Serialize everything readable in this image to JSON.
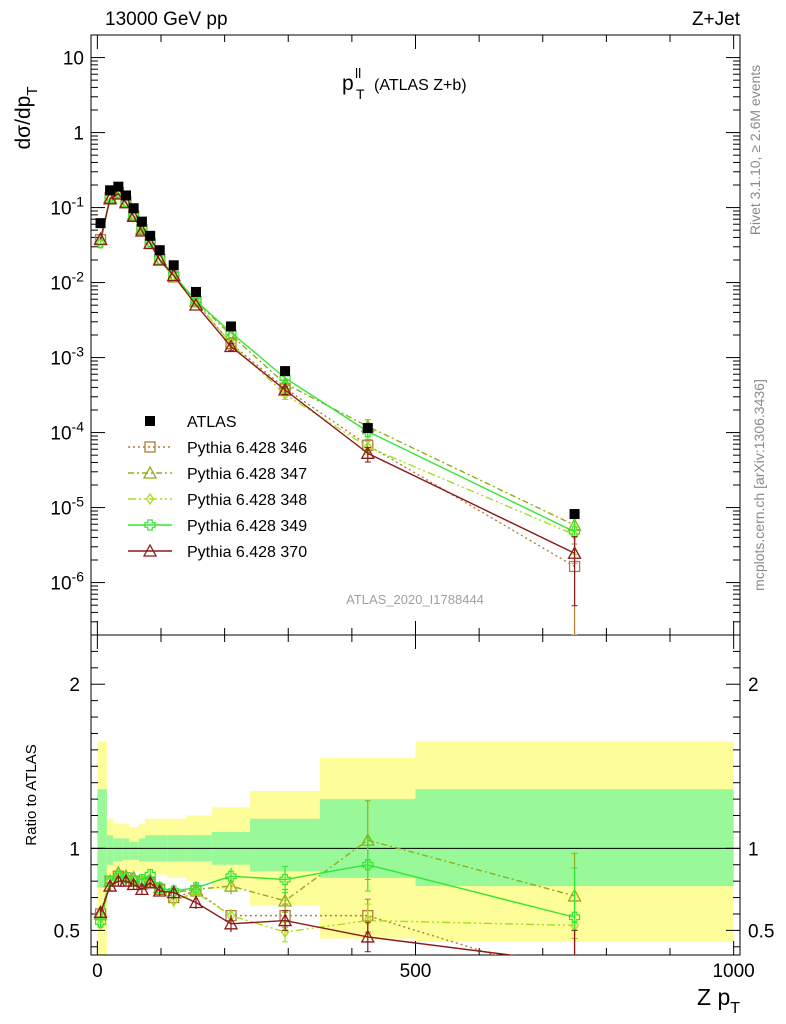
{
  "header": {
    "left": "13000 GeV pp",
    "right": "Z+Jet"
  },
  "side_labels": {
    "rivet": "Rivet 3.1.10, ≥ 2.6M events",
    "mcplots": "mcplots.cern.ch [arXiv:1306.3436]"
  },
  "analysis_id": "ATLAS_2020_I1788444",
  "plot_title": {
    "main": "p",
    "sup": "ll",
    "sub": "T",
    "suffix": "(ATLAS Z+b)"
  },
  "top_ylabel": {
    "main": "dσ/dp",
    "sub": "T"
  },
  "ratio_ylabel": "Ratio to ATLAS",
  "xlabel": {
    "main": "Z p",
    "sub": "T"
  },
  "colors": {
    "atlas": "#000000",
    "p346": "#b07d3a",
    "p347": "#8fae1b",
    "p348": "#a5e01a",
    "p349": "#33e633",
    "p370": "#8c1a1a",
    "band_inner": "#99f999",
    "band_outer": "#fdfd99"
  },
  "chart_data": {
    "type": "scatter",
    "x_range": [
      -10,
      1010
    ],
    "top_ylim": [
      2e-07,
      20
    ],
    "top_yscale": "log",
    "ratio_ylim": [
      0.35,
      2.3
    ],
    "top_yticks": [
      {
        "v": 10,
        "label": "10"
      },
      {
        "v": 1,
        "label": "1"
      },
      {
        "v": 0.1,
        "label": "10^-1"
      },
      {
        "v": 0.01,
        "label": "10^-2"
      },
      {
        "v": 0.001,
        "label": "10^-3"
      },
      {
        "v": 0.0001,
        "label": "10^-4"
      },
      {
        "v": 1e-05,
        "label": "10^-5"
      },
      {
        "v": 1e-06,
        "label": "10^-6"
      }
    ],
    "ratio_yticks": [
      {
        "v": 0.5,
        "label": "0.5"
      },
      {
        "v": 1,
        "label": "1"
      },
      {
        "v": 2,
        "label": "2"
      }
    ],
    "xticks": [
      {
        "v": 0,
        "label": "0"
      },
      {
        "v": 500,
        "label": "500"
      },
      {
        "v": 1000,
        "label": "1000"
      }
    ],
    "x": [
      5,
      20,
      33,
      45,
      57,
      70,
      83,
      98,
      120,
      155,
      210,
      295,
      425,
      750
    ],
    "atlas": [
      0.062,
      0.17,
      0.19,
      0.145,
      0.098,
      0.065,
      0.042,
      0.027,
      0.017,
      0.0075,
      0.0026,
      0.00066,
      0.000115,
      8.2e-06
    ],
    "bands": {
      "edges": [
        0,
        15,
        25,
        40,
        50,
        65,
        75,
        90,
        110,
        140,
        180,
        240,
        350,
        500,
        1000
      ],
      "inner_hi": [
        1.36,
        1.08,
        1.06,
        1.06,
        1.04,
        1.06,
        1.08,
        1.08,
        1.08,
        1.08,
        1.1,
        1.18,
        1.3,
        1.36
      ],
      "inner_lo": [
        0.76,
        0.9,
        0.92,
        0.93,
        0.93,
        0.92,
        0.92,
        0.92,
        0.92,
        0.92,
        0.9,
        0.86,
        0.82,
        0.77
      ],
      "outer_hi": [
        1.65,
        1.18,
        1.15,
        1.15,
        1.13,
        1.15,
        1.18,
        1.18,
        1.18,
        1.2,
        1.25,
        1.35,
        1.55,
        1.65
      ],
      "outer_lo": [
        0.35,
        0.82,
        0.85,
        0.86,
        0.86,
        0.85,
        0.84,
        0.84,
        0.82,
        0.8,
        0.75,
        0.65,
        0.45,
        0.43
      ]
    },
    "series": [
      {
        "name": "Pythia 6.428 346",
        "color": "#b07d3a",
        "marker": "square",
        "dash": "2,3",
        "ratio": [
          0.6,
          0.8,
          0.83,
          0.82,
          0.8,
          0.78,
          0.79,
          0.75,
          0.7,
          0.74,
          0.59,
          0.59,
          0.59,
          0.2
        ],
        "err": [
          0.03,
          0.03,
          0.03,
          0.03,
          0.03,
          0.03,
          0.03,
          0.03,
          0.04,
          0.04,
          0.04,
          0.07,
          0.1,
          0.3
        ]
      },
      {
        "name": "Pythia 6.428 347",
        "color": "#8fae1b",
        "marker": "triangle",
        "dash": "6,3,2,3",
        "ratio": [
          0.6,
          0.8,
          0.85,
          0.83,
          0.82,
          0.8,
          0.8,
          0.76,
          0.73,
          0.75,
          0.77,
          0.68,
          1.05,
          0.71
        ],
        "err": [
          0.03,
          0.03,
          0.03,
          0.03,
          0.03,
          0.03,
          0.03,
          0.03,
          0.04,
          0.04,
          0.05,
          0.07,
          0.24,
          0.26
        ]
      },
      {
        "name": "Pythia 6.428 348",
        "color": "#a5e01a",
        "marker": "diamond",
        "dash": "8,3,2,3,2,3",
        "ratio": [
          0.54,
          0.8,
          0.84,
          0.82,
          0.81,
          0.8,
          0.81,
          0.75,
          0.68,
          0.73,
          0.59,
          0.49,
          0.56,
          0.53
        ],
        "err": [
          0.03,
          0.03,
          0.03,
          0.03,
          0.03,
          0.03,
          0.03,
          0.03,
          0.04,
          0.04,
          0.04,
          0.06,
          0.1,
          0.2
        ]
      },
      {
        "name": "Pythia 6.428 349",
        "color": "#33e633",
        "marker": "cross",
        "dash": "",
        "ratio": [
          0.55,
          0.8,
          0.83,
          0.82,
          0.8,
          0.81,
          0.84,
          0.76,
          0.74,
          0.76,
          0.83,
          0.81,
          0.9,
          0.58
        ],
        "err": [
          0.03,
          0.03,
          0.03,
          0.03,
          0.03,
          0.03,
          0.03,
          0.03,
          0.04,
          0.04,
          0.05,
          0.08,
          0.16,
          0.3
        ]
      },
      {
        "name": "Pythia 6.428 370",
        "color": "#8c1a1a",
        "marker": "triangle",
        "dash": "",
        "ratio": [
          0.61,
          0.77,
          0.8,
          0.8,
          0.78,
          0.75,
          0.79,
          0.74,
          0.73,
          0.67,
          0.54,
          0.56,
          0.46,
          0.3
        ],
        "err": [
          0.03,
          0.03,
          0.03,
          0.03,
          0.03,
          0.03,
          0.03,
          0.03,
          0.04,
          0.04,
          0.05,
          0.06,
          0.09,
          0.2
        ]
      }
    ],
    "legend": [
      {
        "label": "ATLAS",
        "kind": "data"
      },
      {
        "label": "Pythia 6.428 346",
        "series": 0
      },
      {
        "label": "Pythia 6.428 347",
        "series": 1
      },
      {
        "label": "Pythia 6.428 348",
        "series": 2
      },
      {
        "label": "Pythia 6.428 349",
        "series": 3
      },
      {
        "label": "Pythia 6.428 370",
        "series": 4
      }
    ]
  }
}
